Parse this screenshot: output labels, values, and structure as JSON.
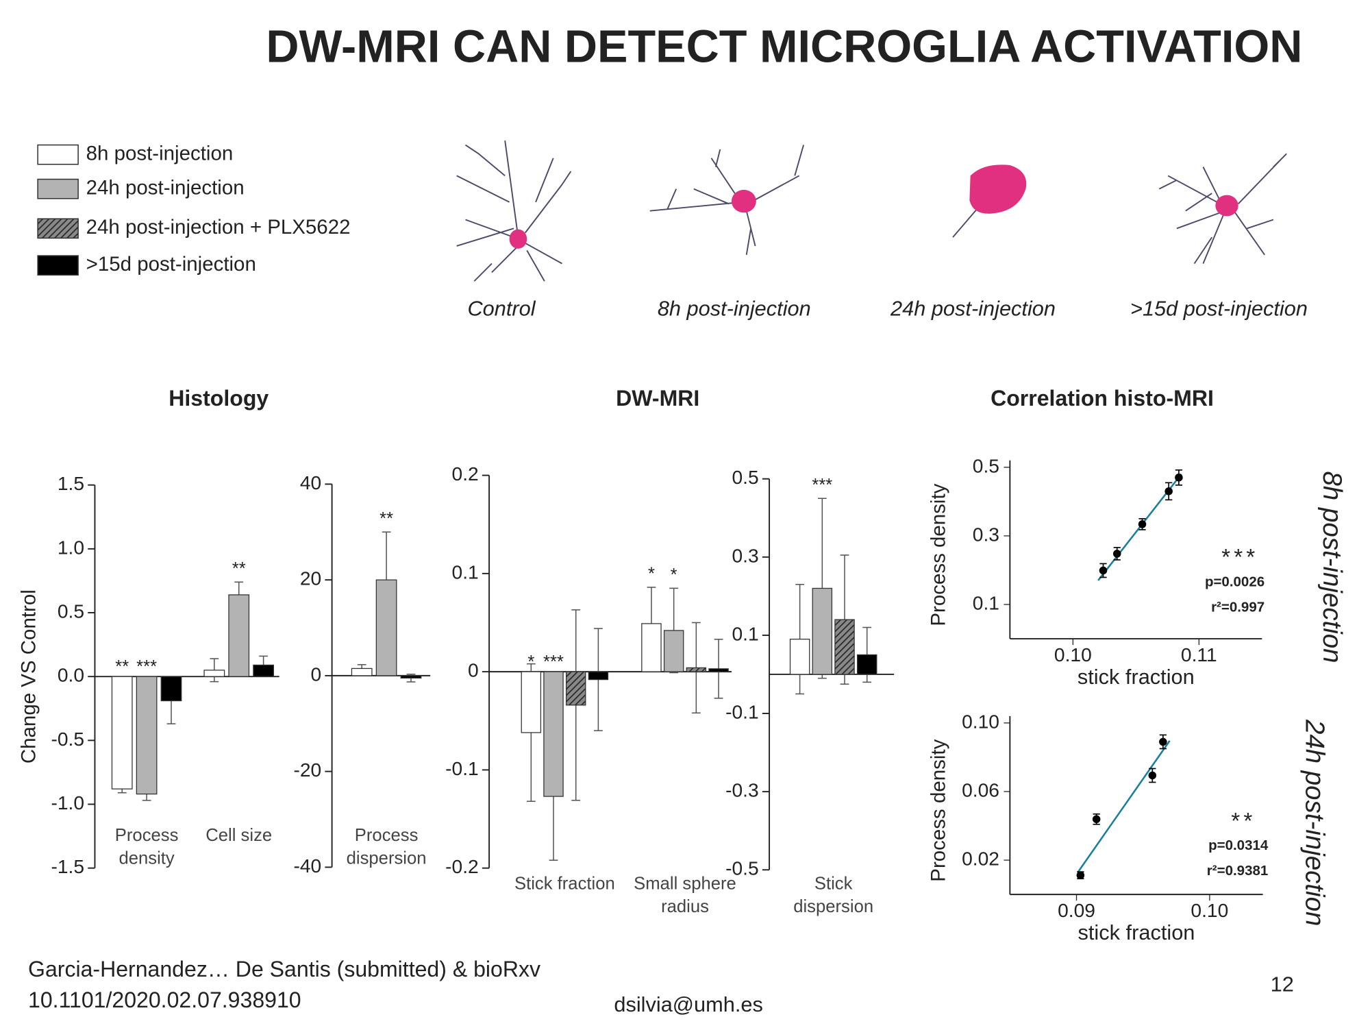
{
  "title": "DW-MRI CAN DETECT MICROGLIA ACTIVATION",
  "cells": [
    "Control",
    "8h post-injection",
    "24h post-injection",
    ">15d post-injection"
  ],
  "sections": [
    "Histology",
    "DW-MRI",
    "Correlation histo-MRI"
  ],
  "footer": {
    "citation": [
      "Garcia-Hernandez… De Santis (submitted) & bioRxv",
      "10.1101/2020.02.07.938910"
    ],
    "email": "dsilvia@umh.es",
    "page": 12
  },
  "chart_data": [
    {
      "type": "bar",
      "ylabel": "Change VS Control",
      "categories": [
        "Process density",
        "Cell size"
      ],
      "series": [
        {
          "color": "#ffffff",
          "values": [
            -0.88,
            0.05
          ],
          "errors": [
            0.03,
            0.09
          ],
          "stars": [
            "**",
            null
          ]
        },
        {
          "color": "#b3b3b3",
          "values": [
            -0.92,
            0.64
          ],
          "errors": [
            0.05,
            0.1
          ],
          "stars": [
            "***",
            "**"
          ]
        },
        {
          "color": "#000000",
          "values": [
            -0.19,
            0.09
          ],
          "errors": [
            0.18,
            0.07
          ],
          "stars": [
            null,
            null
          ]
        }
      ],
      "ylim": [
        -1.5,
        1.5
      ],
      "yticks": [
        1.5,
        {
          "value": 1,
          "label": "1.0"
        },
        0.5,
        {
          "value": 0,
          "label": "0.0"
        },
        -0.5,
        {
          "value": -1,
          "label": "-1.0"
        },
        -1.5
      ]
    },
    {
      "type": "bar",
      "categories": [
        "Process dispersion"
      ],
      "series": [
        {
          "color": "#ffffff",
          "values": [
            1.5
          ],
          "errors": [
            0.8
          ],
          "stars": [
            null
          ]
        },
        {
          "color": "#b3b3b3",
          "values": [
            20
          ],
          "errors": [
            10
          ],
          "stars": [
            "**"
          ]
        },
        {
          "color": "#000000",
          "values": [
            -0.5
          ],
          "errors": [
            0.8
          ],
          "stars": [
            null
          ]
        }
      ],
      "ylim": [
        -40,
        40
      ],
      "yticks": [
        40,
        20,
        0,
        -20,
        -40
      ]
    },
    {
      "type": "bar",
      "categories": [
        "Stick fraction",
        "Small sphere radius"
      ],
      "series": [
        {
          "name": "8h post-injection",
          "color": "#ffffff",
          "values": [
            -0.062,
            0.049
          ],
          "errors": [
            0.07,
            0.037
          ],
          "stars": [
            "*",
            "*"
          ]
        },
        {
          "name": "24h post-injection",
          "color": "#b3b3b3",
          "values": [
            -0.127,
            0.042
          ],
          "errors": [
            0.065,
            0.043
          ],
          "stars": [
            "***",
            "*"
          ]
        },
        {
          "name": "24h post-injection + PLX5622",
          "color": "#555555",
          "pattern": "hatch",
          "values": [
            -0.034,
            0.004
          ],
          "errors": [
            0.097,
            0.046
          ],
          "stars": [
            null,
            null
          ]
        },
        {
          "name": ">15d post-injection",
          "color": "#000000",
          "values": [
            -0.008,
            0.003
          ],
          "errors": [
            0.052,
            0.03
          ],
          "stars": [
            null,
            null
          ]
        }
      ],
      "ylim": [
        -0.2,
        0.2
      ],
      "yticks": [
        0.2,
        0.1,
        0,
        -0.1,
        -0.2
      ]
    },
    {
      "type": "bar",
      "categories": [
        "Stick dispersion"
      ],
      "series": [
        {
          "color": "#ffffff",
          "values": [
            0.09
          ],
          "errors": [
            0.14
          ],
          "stars": [
            null
          ]
        },
        {
          "color": "#b3b3b3",
          "values": [
            0.22
          ],
          "errors": [
            0.23
          ],
          "stars": [
            "***"
          ]
        },
        {
          "color": "#555555",
          "pattern": "hatch",
          "values": [
            0.14
          ],
          "errors": [
            0.165
          ],
          "stars": [
            null
          ]
        },
        {
          "color": "#000000",
          "values": [
            0.05
          ],
          "errors": [
            0.07
          ],
          "stars": [
            null
          ]
        }
      ],
      "ylim": [
        -0.5,
        0.5
      ],
      "yticks": [
        0.5,
        0.3,
        0.1,
        -0.1,
        -0.3,
        -0.5
      ]
    },
    {
      "type": "scatter",
      "side_label": "8h post-injection",
      "xlabel": "stick fraction",
      "ylabel": "Process density",
      "x": [
        0.1024,
        0.1035,
        0.1055,
        0.1076,
        0.1084
      ],
      "y": [
        0.199,
        0.248,
        0.334,
        0.43,
        0.47
      ],
      "yerr": [
        0.02,
        0.018,
        0.016,
        0.025,
        0.022
      ],
      "fit": {
        "x": [
          0.102,
          0.1086
        ],
        "y": [
          0.17,
          0.48
        ],
        "color": "#1a7f9a"
      },
      "stars": "***",
      "p": "p=0.0026",
      "r2": "r²=0.997",
      "xlim": [
        0.095,
        0.115
      ],
      "ylim": [
        0,
        0.52
      ],
      "xticks": [
        {
          "value": 0.1,
          "label": "0.10"
        },
        0.11
      ],
      "yticks": [
        0.5,
        0.3,
        0.1
      ]
    },
    {
      "type": "scatter",
      "side_label": "24h post-injection",
      "xlabel": "stick fraction",
      "ylabel": "Process density",
      "x": [
        0.0903,
        0.0915,
        0.0957,
        0.0965
      ],
      "y": [
        0.0112,
        0.0439,
        0.0694,
        0.089
      ],
      "yerr": [
        0.002,
        0.003,
        0.004,
        0.004
      ],
      "fit": {
        "x": [
          0.0901,
          0.097
        ],
        "y": [
          0.0129,
          0.0896
        ],
        "color": "#1a7f9a"
      },
      "stars": "**",
      "p": "p=0.0314",
      "r2": "r²=0.9381",
      "xlim": [
        0.085,
        0.104
      ],
      "ylim": [
        0,
        0.104
      ],
      "xticks": [
        0.09,
        {
          "value": 0.1,
          "label": "0.10"
        }
      ],
      "yticks": [
        {
          "value": 0.1,
          "label": "0.10"
        },
        0.06,
        0.02
      ]
    }
  ]
}
